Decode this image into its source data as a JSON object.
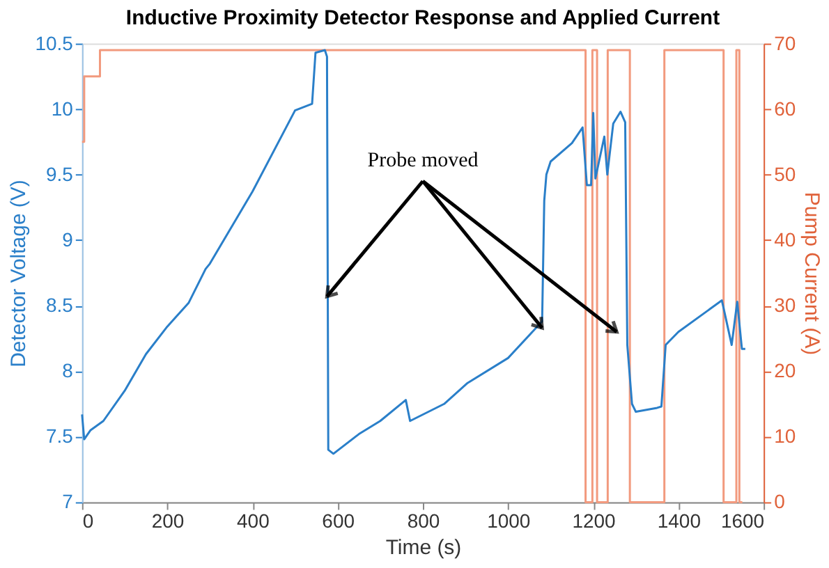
{
  "chart_data": {
    "type": "line",
    "title": "Inductive Proximity Detector Response and Applied Current",
    "xlabel": "Time (s)",
    "ylabel": "Detector Voltage (V)",
    "y2label": "Pump Current (A)",
    "xlim": [
      0,
      1600
    ],
    "xticks": [
      0,
      200,
      400,
      600,
      800,
      1000,
      1200,
      1400,
      1600
    ],
    "ylim": [
      7,
      10.5
    ],
    "yticks": [
      7,
      7.5,
      8,
      8.5,
      9,
      9.5,
      10,
      10.5
    ],
    "y2lim": [
      0,
      70
    ],
    "y2ticks": [
      0,
      10,
      20,
      30,
      40,
      50,
      60,
      70
    ],
    "grid": false,
    "legend": false,
    "marker": "none",
    "line_style": "solid",
    "annotations": [
      {
        "text": "Probe moved",
        "x": 575,
        "y": 8.57
      }
    ],
    "series": [
      {
        "color": "#2a7fc9",
        "x": [
          0,
          5,
          20,
          50,
          100,
          150,
          200,
          250,
          290,
          300,
          400,
          500,
          540,
          548,
          570,
          575,
          578,
          590,
          650,
          700,
          760,
          770,
          850,
          905,
          1000,
          1080,
          1085,
          1090,
          1100,
          1150,
          1175,
          1185,
          1195,
          1200,
          1205,
          1226,
          1233,
          1247,
          1264,
          1275,
          1280,
          1291,
          1300,
          1350,
          1360,
          1370,
          1400,
          1502,
          1525,
          1538,
          1549,
          1557
        ],
        "values": [
          7.67,
          7.48,
          7.55,
          7.62,
          7.85,
          8.13,
          8.34,
          8.52,
          8.78,
          8.82,
          9.37,
          9.99,
          10.04,
          10.43,
          10.45,
          10.4,
          7.4,
          7.37,
          7.52,
          7.62,
          7.78,
          7.62,
          7.75,
          7.91,
          8.1,
          8.38,
          9.3,
          9.5,
          9.6,
          9.74,
          9.86,
          9.42,
          9.42,
          9.97,
          9.47,
          9.79,
          9.5,
          9.89,
          9.98,
          9.9,
          8.2,
          7.75,
          7.69,
          7.72,
          7.73,
          8.2,
          8.3,
          8.54,
          8.2,
          8.53,
          8.17,
          8.17
        ]
      },
      {
        "type": "step",
        "axis": "y2",
        "color": "#f29a7e",
        "x": [
          0,
          5,
          42,
          1182,
          1198,
          1209,
          1234,
          1286,
          1367,
          1506,
          1536,
          1543,
          1550
        ],
        "values": [
          55,
          65,
          69,
          0,
          69,
          0,
          69,
          0,
          69,
          0,
          69,
          0,
          0
        ]
      }
    ]
  }
}
